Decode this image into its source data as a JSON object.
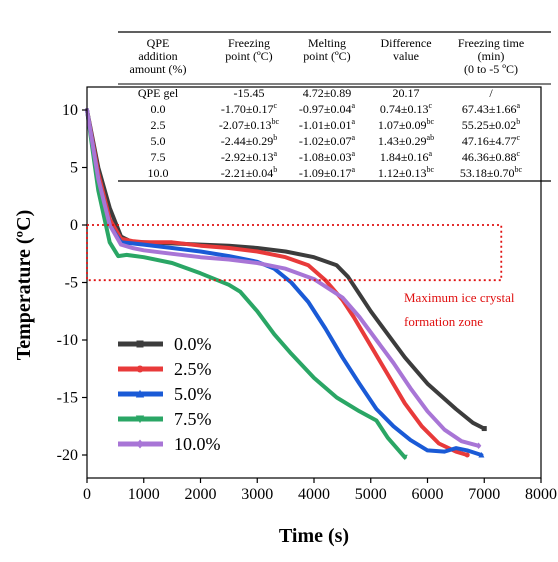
{
  "chart_data": {
    "type": "line",
    "xlabel": "Time (s)",
    "ylabel": "Temperature (ºC)",
    "xlim": [
      0,
      8000
    ],
    "ylim": [
      -22,
      12
    ],
    "xticks": [
      0,
      1000,
      2000,
      3000,
      4000,
      5000,
      6000,
      7000,
      8000
    ],
    "yticks": [
      10,
      5,
      0,
      -5,
      -10,
      -15,
      -20
    ],
    "grid": false,
    "legend_position": "bottom-left",
    "series": [
      {
        "name": "0.0%",
        "color": "#3c3c3c",
        "marker": "square",
        "points": [
          [
            0,
            10
          ],
          [
            200,
            5
          ],
          [
            400,
            1.5
          ],
          [
            600,
            -1
          ],
          [
            800,
            -1.5
          ],
          [
            1000,
            -1.5
          ],
          [
            1500,
            -1.6
          ],
          [
            2000,
            -1.7
          ],
          [
            2500,
            -1.8
          ],
          [
            3000,
            -2
          ],
          [
            3500,
            -2.3
          ],
          [
            4000,
            -2.8
          ],
          [
            4400,
            -3.5
          ],
          [
            4600,
            -4.5
          ],
          [
            4800,
            -6
          ],
          [
            5000,
            -7.5
          ],
          [
            5300,
            -9.5
          ],
          [
            5600,
            -11.5
          ],
          [
            6000,
            -13.8
          ],
          [
            6500,
            -16
          ],
          [
            6800,
            -17.2
          ],
          [
            7000,
            -17.7
          ]
        ]
      },
      {
        "name": "2.5%",
        "color": "#e83a3a",
        "marker": "circle",
        "points": [
          [
            0,
            10
          ],
          [
            200,
            4.5
          ],
          [
            400,
            0.5
          ],
          [
            600,
            -1.2
          ],
          [
            800,
            -1.4
          ],
          [
            1000,
            -1.5
          ],
          [
            1500,
            -1.5
          ],
          [
            2000,
            -1.8
          ],
          [
            2500,
            -2
          ],
          [
            3000,
            -2.3
          ],
          [
            3500,
            -2.8
          ],
          [
            3900,
            -3.5
          ],
          [
            4200,
            -4.8
          ],
          [
            4500,
            -6.5
          ],
          [
            4700,
            -8
          ],
          [
            5000,
            -10.5
          ],
          [
            5300,
            -13
          ],
          [
            5600,
            -15.5
          ],
          [
            5900,
            -17.5
          ],
          [
            6200,
            -19
          ],
          [
            6500,
            -19.7
          ],
          [
            6700,
            -20
          ]
        ]
      },
      {
        "name": "5.0%",
        "color": "#1a5ad6",
        "marker": "triangle",
        "points": [
          [
            0,
            10
          ],
          [
            200,
            4
          ],
          [
            400,
            0
          ],
          [
            600,
            -1.5
          ],
          [
            800,
            -1.6
          ],
          [
            1000,
            -1.7
          ],
          [
            1500,
            -2
          ],
          [
            2000,
            -2.3
          ],
          [
            2500,
            -2.7
          ],
          [
            3000,
            -3.2
          ],
          [
            3300,
            -3.8
          ],
          [
            3600,
            -5
          ],
          [
            3900,
            -6.7
          ],
          [
            4200,
            -9
          ],
          [
            4500,
            -11.5
          ],
          [
            4800,
            -13.8
          ],
          [
            5100,
            -16
          ],
          [
            5400,
            -17.5
          ],
          [
            5700,
            -18.7
          ],
          [
            6000,
            -19.6
          ],
          [
            6300,
            -19.7
          ],
          [
            6500,
            -19.4
          ],
          [
            6700,
            -19.6
          ],
          [
            6950,
            -20
          ]
        ]
      },
      {
        "name": "7.5%",
        "color": "#2aa665",
        "marker": "triangle-down",
        "points": [
          [
            0,
            10
          ],
          [
            200,
            3
          ],
          [
            400,
            -1.5
          ],
          [
            550,
            -2.7
          ],
          [
            700,
            -2.6
          ],
          [
            1000,
            -2.8
          ],
          [
            1500,
            -3.3
          ],
          [
            2000,
            -4.2
          ],
          [
            2500,
            -5.2
          ],
          [
            2700,
            -5.8
          ],
          [
            3000,
            -7.5
          ],
          [
            3300,
            -9.5
          ],
          [
            3600,
            -11.2
          ],
          [
            4000,
            -13.3
          ],
          [
            4400,
            -15
          ],
          [
            4800,
            -16.2
          ],
          [
            5100,
            -17
          ],
          [
            5300,
            -18.5
          ],
          [
            5600,
            -20.2
          ]
        ]
      },
      {
        "name": "10.0%",
        "color": "#a875d6",
        "marker": "diamond",
        "points": [
          [
            0,
            10
          ],
          [
            200,
            4
          ],
          [
            400,
            0
          ],
          [
            600,
            -1.7
          ],
          [
            800,
            -2
          ],
          [
            1000,
            -2.2
          ],
          [
            1500,
            -2.5
          ],
          [
            2000,
            -2.8
          ],
          [
            2500,
            -3
          ],
          [
            3000,
            -3.3
          ],
          [
            3500,
            -3.8
          ],
          [
            4000,
            -4.7
          ],
          [
            4500,
            -6.3
          ],
          [
            4800,
            -8
          ],
          [
            5100,
            -10
          ],
          [
            5400,
            -12
          ],
          [
            5700,
            -14.2
          ],
          [
            6000,
            -16.2
          ],
          [
            6300,
            -17.8
          ],
          [
            6600,
            -18.8
          ],
          [
            6900,
            -19.2
          ]
        ]
      }
    ],
    "annotation": {
      "lines": [
        "Maximum ice crystal",
        "formation zone"
      ],
      "color": "#e01010",
      "box": {
        "x0": 0,
        "x1": 7300,
        "y0": 0,
        "y1": -4.8
      }
    },
    "table": {
      "headers": [
        [
          "QPE",
          "addition",
          "amount (%)"
        ],
        [
          "Freezing",
          "point (ºC)"
        ],
        [
          "Melting",
          "point (ºC)"
        ],
        [
          "Difference",
          "value"
        ],
        [
          "Freezing time",
          "(min)",
          "(0 to -5 ºC)"
        ]
      ],
      "rows": [
        [
          {
            "t": "QPE gel"
          },
          {
            "t": "-15.45"
          },
          {
            "t": "4.72±0.89"
          },
          {
            "t": "20.17"
          },
          {
            "t": "/"
          }
        ],
        [
          {
            "t": "0.0"
          },
          {
            "t": "-1.70±0.17",
            "s": "c"
          },
          {
            "t": "-0.97±0.04",
            "s": "a"
          },
          {
            "t": "0.74±0.13",
            "s": "c"
          },
          {
            "t": "67.43±1.66",
            "s": "a"
          }
        ],
        [
          {
            "t": "2.5"
          },
          {
            "t": "-2.07±0.13",
            "s": "bc"
          },
          {
            "t": "-1.01±0.01",
            "s": "a"
          },
          {
            "t": "1.07±0.09",
            "s": "bc"
          },
          {
            "t": "55.25±0.02",
            "s": "b"
          }
        ],
        [
          {
            "t": "5.0"
          },
          {
            "t": "-2.44±0.29",
            "s": "b"
          },
          {
            "t": "-1.02±0.07",
            "s": "a"
          },
          {
            "t": "1.43±0.29",
            "s": "ab"
          },
          {
            "t": "47.16±4.77",
            "s": "c"
          }
        ],
        [
          {
            "t": "7.5"
          },
          {
            "t": "-2.92±0.13",
            "s": "a"
          },
          {
            "t": "-1.08±0.03",
            "s": "a"
          },
          {
            "t": "1.84±0.16",
            "s": "a"
          },
          {
            "t": "46.36±0.88",
            "s": "c"
          }
        ],
        [
          {
            "t": "10.0"
          },
          {
            "t": "-2.21±0.04",
            "s": "b"
          },
          {
            "t": "-1.09±0.17",
            "s": "a"
          },
          {
            "t": "1.12±0.13",
            "s": "bc"
          },
          {
            "t": "53.18±0.70",
            "s": "bc"
          }
        ]
      ]
    }
  }
}
